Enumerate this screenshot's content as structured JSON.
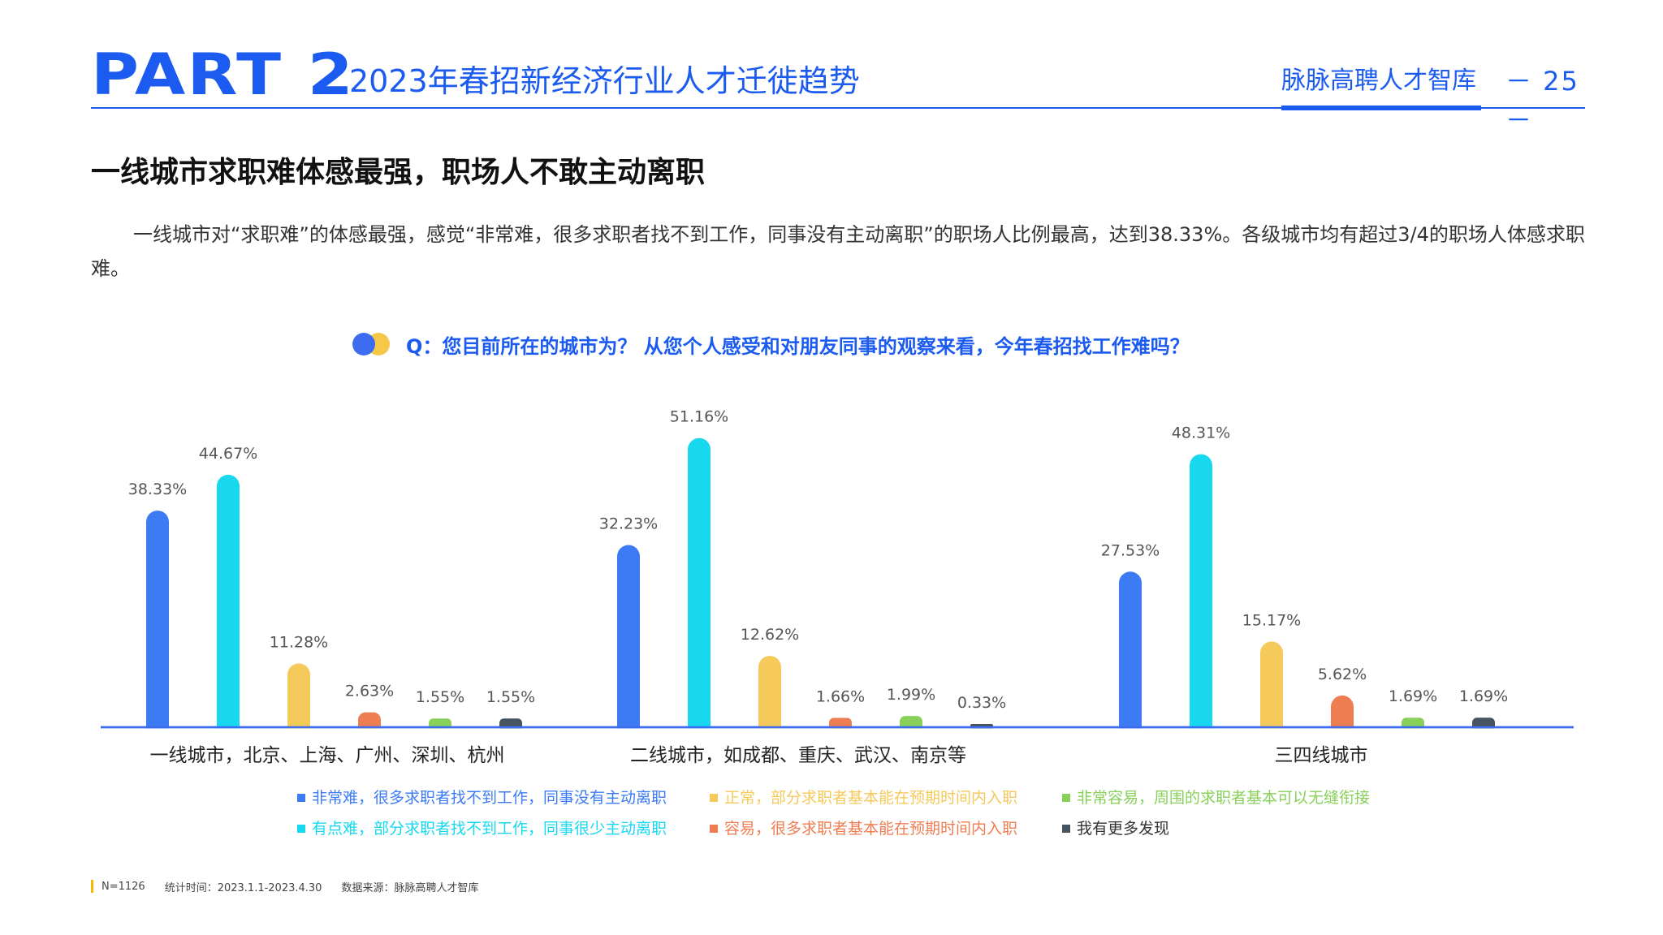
{
  "header": {
    "part": "PART 2",
    "subtitle": "2023年春招新经济行业人才迁徙趋势",
    "brand": "脉脉高聘人才智库",
    "page_number": "－ 25 －"
  },
  "headline": "一线城市求职难体感最强，职场人不敢主动离职",
  "paragraph": "一线城市对“求职难”的体感最强，感觉“非常难，很多求职者找不到工作，同事没有主动离职”的职场人比例最高，达到38.33%。各级城市均有超过3/4的职场人体感求职难。",
  "question": "Q：您目前所在的城市为？ 从您个人感受和对朋友同事的观察来看，今年春招找工作难吗？",
  "colors": {
    "brand_blue": "#1c5bf0",
    "axis_line": "#3d6cf0"
  },
  "chart_data": {
    "type": "bar",
    "categories": [
      "一线城市，北京、上海、广州、深圳、杭州",
      "二线城市，如成都、重庆、武汉、南京等",
      "三四线城市"
    ],
    "series": [
      {
        "name": "非常难，很多求职者找不到工作，同事没有主动离职",
        "color": "#3d7bf5",
        "values": [
          38.33,
          32.23,
          27.53
        ],
        "labels": [
          "38.33%",
          "32.23%",
          "27.53%"
        ]
      },
      {
        "name": "有点难，部分求职者找不到工作，同事很少主动离职",
        "color": "#18d8f0",
        "values": [
          44.67,
          51.16,
          48.31
        ],
        "labels": [
          "44.67%",
          "51.16%",
          "48.31%"
        ]
      },
      {
        "name": "正常，部分求职者基本能在预期时间内入职",
        "color": "#f5c95a",
        "values": [
          11.28,
          12.62,
          15.17
        ],
        "labels": [
          "11.28%",
          "12.62%",
          "15.17%"
        ]
      },
      {
        "name": "容易，很多求职者基本能在预期时间内入职",
        "color": "#ee7d52",
        "values": [
          2.63,
          1.66,
          5.62
        ],
        "labels": [
          "2.63%",
          "1.66%",
          "5.62%"
        ]
      },
      {
        "name": "非常容易，周围的求职者基本可以无缝衔接",
        "color": "#88d05a",
        "values": [
          1.55,
          1.99,
          1.69
        ],
        "labels": [
          "1.55%",
          "1.99%",
          "1.69%"
        ]
      },
      {
        "name": "我有更多发现",
        "color": "#465460",
        "values": [
          1.55,
          0.33,
          1.69
        ],
        "labels": [
          "1.55%",
          "0.33%",
          "1.69%"
        ]
      }
    ],
    "ylim": [
      0,
      55
    ],
    "grid": false,
    "legend": "bottom"
  },
  "footnote": {
    "n": "N=1126",
    "period": "统计时间：2023.1.1-2023.4.30",
    "source": "数据来源：脉脉高聘人才智库"
  }
}
